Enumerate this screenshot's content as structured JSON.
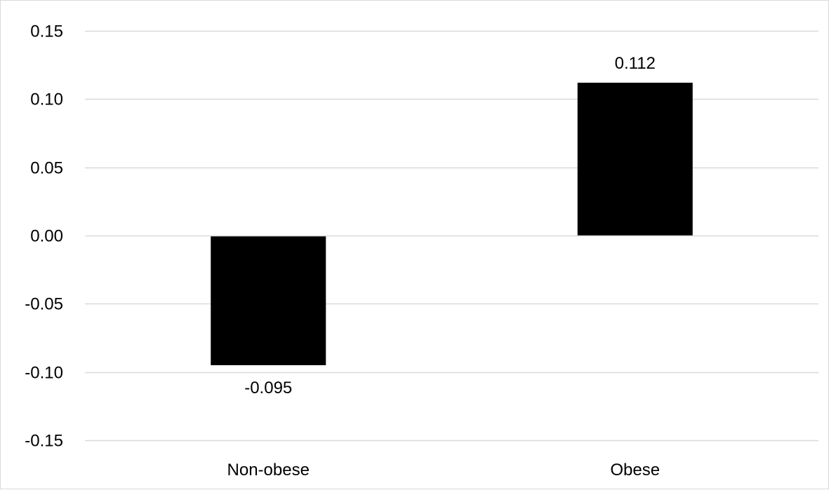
{
  "chart_data": {
    "type": "bar",
    "categories": [
      "Non-obese",
      "Obese"
    ],
    "values": [
      -0.095,
      0.112
    ],
    "data_labels": [
      "-0.095",
      "0.112"
    ],
    "title": "",
    "xlabel": "",
    "ylabel": "",
    "ylim": [
      -0.15,
      0.15
    ],
    "y_ticks": [
      0.15,
      0.1,
      0.05,
      0.0,
      -0.05,
      -0.1,
      -0.15
    ],
    "y_tick_labels": [
      "0.15",
      "0.10",
      "0.05",
      "0.00",
      "-0.05",
      "-0.10",
      "-0.15"
    ],
    "grid": true,
    "legend": "none",
    "colors": {
      "bar": "#000000",
      "gridline": "#d9d9d9",
      "axis": "#d9d9d9",
      "text": "#000000"
    }
  }
}
